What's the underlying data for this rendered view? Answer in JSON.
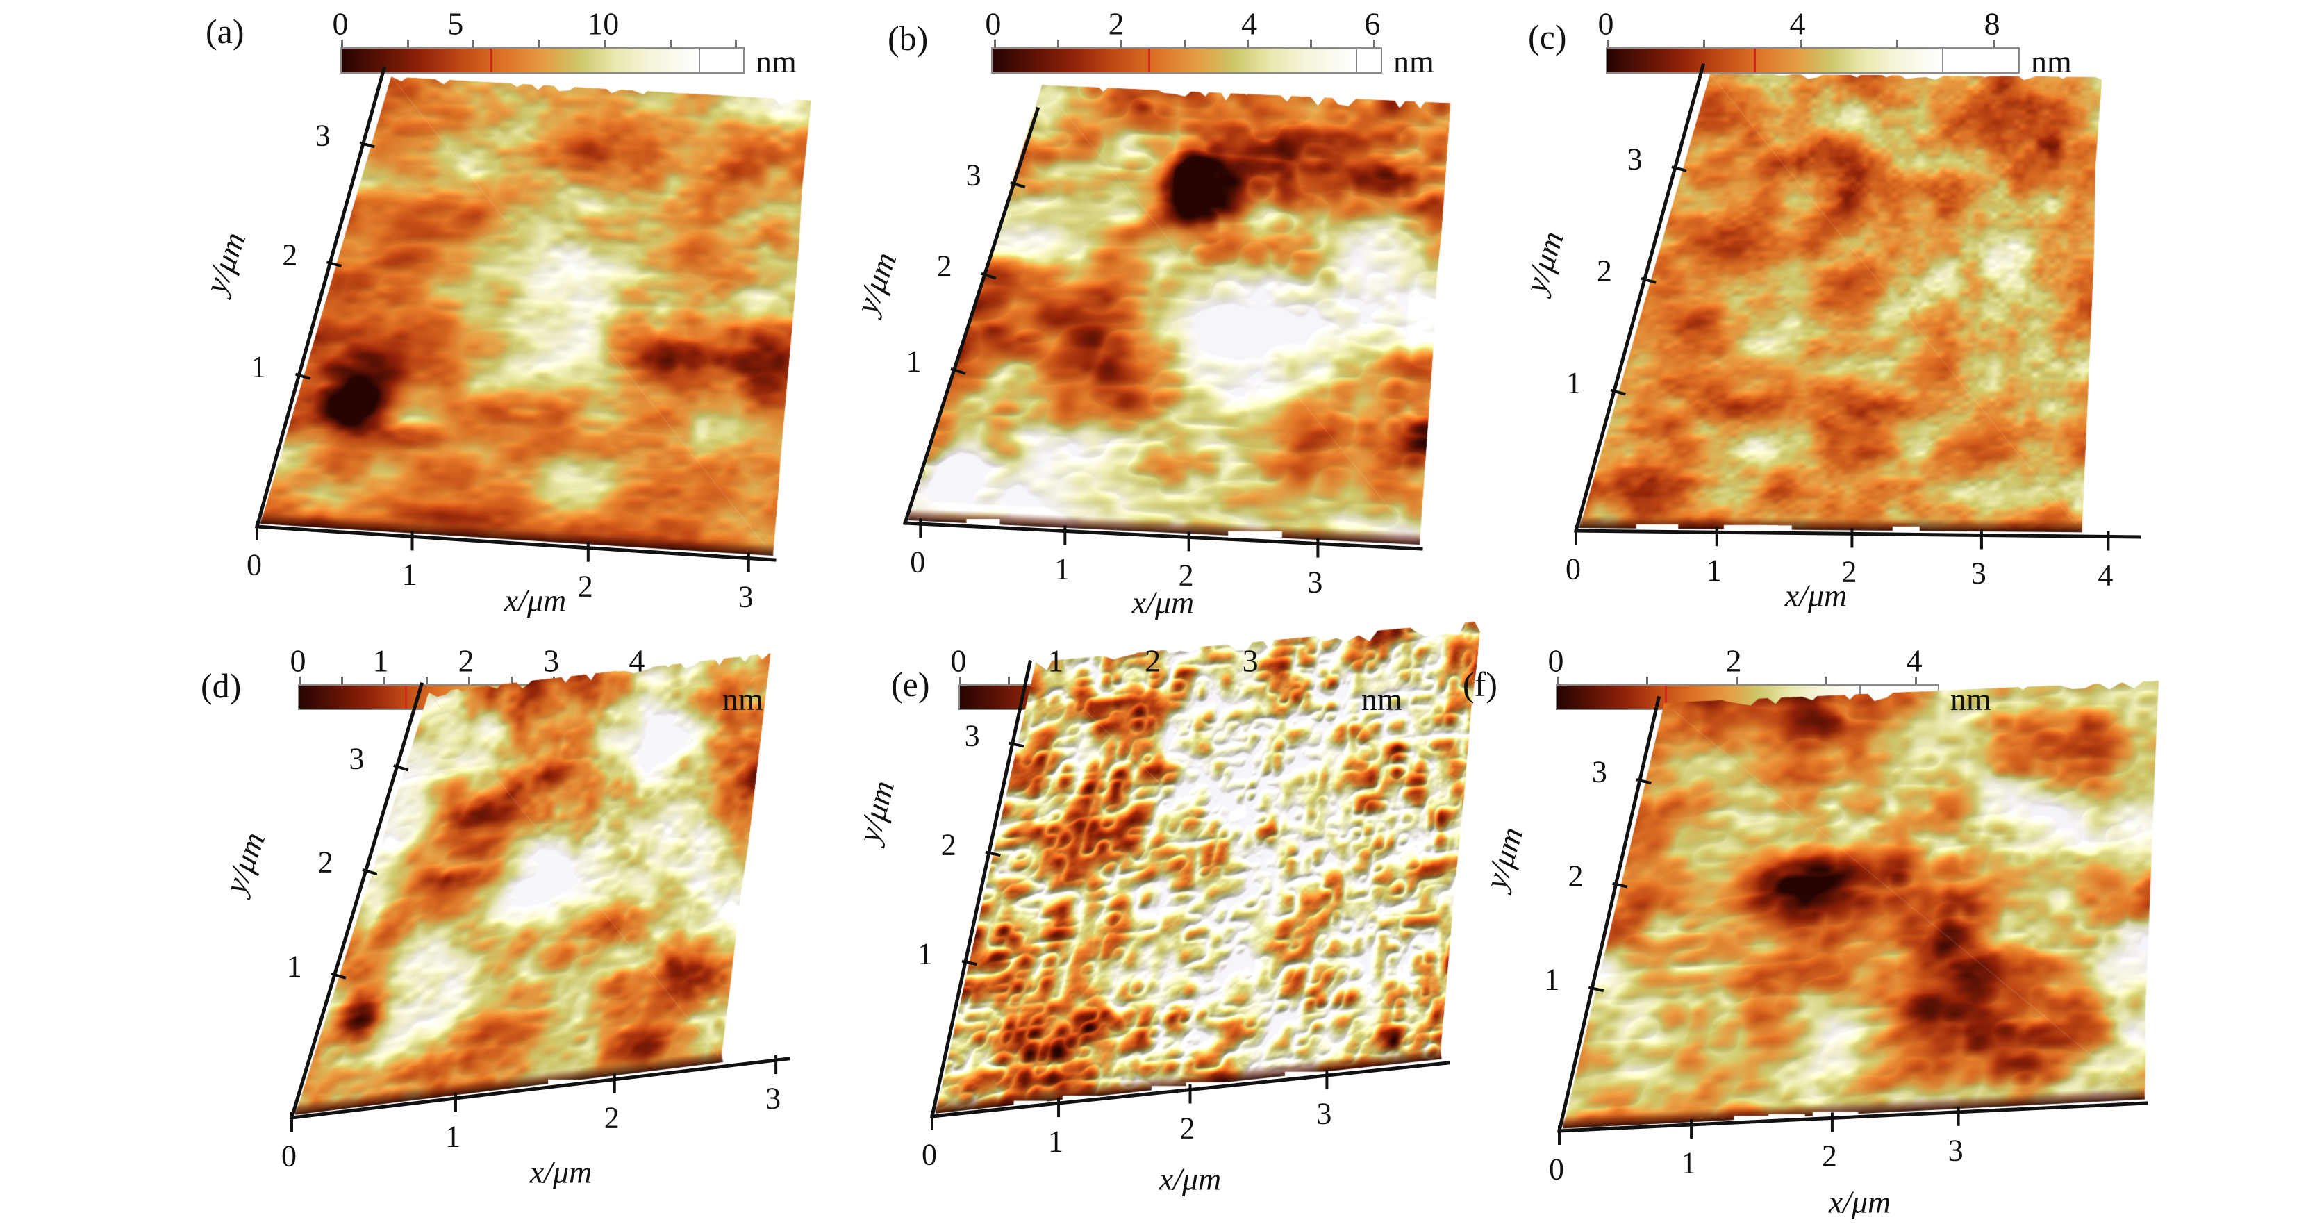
{
  "figure": {
    "background": "#ffffff",
    "rows": 2,
    "cols": 3,
    "description": "Six 3D AFM surface topography plots",
    "marker_color": "#ce2817",
    "colorbar_border": "#8a8a8a",
    "palette": [
      {
        "at": 0.0,
        "color": "#260402"
      },
      {
        "at": 0.1,
        "color": "#551004"
      },
      {
        "at": 0.22,
        "color": "#8e2108"
      },
      {
        "at": 0.34,
        "color": "#c14a15"
      },
      {
        "at": 0.46,
        "color": "#de7527"
      },
      {
        "at": 0.57,
        "color": "#e59d43"
      },
      {
        "at": 0.67,
        "color": "#cdc66a"
      },
      {
        "at": 0.77,
        "color": "#e9e9ae"
      },
      {
        "at": 0.86,
        "color": "#f5f3d7"
      },
      {
        "at": 1.0,
        "color": "#ffffff"
      }
    ]
  },
  "panels": [
    {
      "id": "a",
      "label": "(a)",
      "colorbar": {
        "unit": "nm",
        "labels": [
          {
            "text": "0",
            "f": 0.0
          },
          {
            "text": "5",
            "f": 0.285
          },
          {
            "text": "10",
            "f": 0.65
          }
        ],
        "marker_f": 0.368,
        "white_f": 0.885
      },
      "axes": {
        "x_label": "x/μm",
        "y_label": "y/μm",
        "x_ticks": [
          "0",
          "1",
          "2",
          "3"
        ],
        "y_ticks": [
          "1",
          "2",
          "3"
        ]
      }
    },
    {
      "id": "b",
      "label": "(b)",
      "colorbar": {
        "unit": "nm",
        "labels": [
          {
            "text": "0",
            "f": 0.005
          },
          {
            "text": "2",
            "f": 0.32
          },
          {
            "text": "4",
            "f": 0.66
          },
          {
            "text": "6",
            "f": 0.975
          }
        ],
        "marker_f": 0.4,
        "white_f": 0.93
      },
      "axes": {
        "x_label": "x/μm",
        "y_label": "y/μm",
        "x_ticks": [
          "0",
          "1",
          "2",
          "3"
        ],
        "y_ticks": [
          "1",
          "2",
          "3"
        ]
      }
    },
    {
      "id": "c",
      "label": "(c)",
      "colorbar": {
        "unit": "nm",
        "labels": [
          {
            "text": "0",
            "f": 0.0
          },
          {
            "text": "4",
            "f": 0.463
          },
          {
            "text": "8",
            "f": 0.933
          }
        ],
        "marker_f": 0.356,
        "white_f": 0.81
      },
      "axes": {
        "x_label": "x/μm",
        "y_label": "y/μm",
        "x_ticks": [
          "0",
          "1",
          "2",
          "3",
          "4"
        ],
        "y_ticks": [
          "1",
          "2",
          "3"
        ]
      }
    },
    {
      "id": "d",
      "label": "(d)",
      "colorbar": {
        "unit": "nm",
        "labels": [
          {
            "text": "0",
            "f": 0.0
          },
          {
            "text": "1",
            "f": 0.2
          },
          {
            "text": "2",
            "f": 0.407
          },
          {
            "text": "3",
            "f": 0.613
          },
          {
            "text": "4",
            "f": 0.82
          }
        ],
        "marker_f": 0.257,
        "white_f": 0.75
      },
      "axes": {
        "x_label": "x/μm",
        "y_label": "y/μm",
        "x_ticks": [
          "0",
          "1",
          "2",
          "3"
        ],
        "y_ticks": [
          "1",
          "2",
          "3"
        ]
      }
    },
    {
      "id": "e",
      "label": "(e)",
      "colorbar": {
        "unit": "nm",
        "labels": [
          {
            "text": "0",
            "f": 0.0
          },
          {
            "text": "1",
            "f": 0.248
          },
          {
            "text": "2",
            "f": 0.496
          },
          {
            "text": "3",
            "f": 0.745
          }
        ],
        "marker_f": 0.326,
        "white_f": 0.83
      },
      "axes": {
        "x_label": "x/μm",
        "y_label": "y/μm",
        "x_ticks": [
          "0",
          "1",
          "2",
          "3"
        ],
        "y_ticks": [
          "1",
          "2",
          "3"
        ]
      }
    },
    {
      "id": "f",
      "label": "(f)",
      "colorbar": {
        "unit": "nm",
        "labels": [
          {
            "text": "0",
            "f": 0.0
          },
          {
            "text": "2",
            "f": 0.464
          },
          {
            "text": "4",
            "f": 0.935
          }
        ],
        "marker_f": 0.283,
        "white_f": 0.79
      },
      "axes": {
        "x_label": "x/μm",
        "y_label": "y/μm",
        "x_ticks": [
          "0",
          "1",
          "2",
          "3"
        ],
        "y_ticks": [
          "1",
          "2",
          "3"
        ]
      }
    }
  ],
  "chart_data": [
    {
      "panel": "(a)",
      "type": "3d_surface_topography",
      "x_label": "x/μm",
      "y_label": "y/μm",
      "x_tick_values": [
        0,
        1,
        2,
        3
      ],
      "y_tick_values": [
        1,
        2,
        3
      ],
      "colorbar_unit": "nm",
      "colorbar_tick_values": [
        0,
        5,
        10
      ],
      "legend_position": "top",
      "grid": false
    },
    {
      "panel": "(b)",
      "type": "3d_surface_topography",
      "x_label": "x/μm",
      "y_label": "y/μm",
      "x_tick_values": [
        0,
        1,
        2,
        3
      ],
      "y_tick_values": [
        1,
        2,
        3
      ],
      "colorbar_unit": "nm",
      "colorbar_tick_values": [
        0,
        2,
        4,
        6
      ],
      "legend_position": "top",
      "grid": false
    },
    {
      "panel": "(c)",
      "type": "3d_surface_topography",
      "x_label": "x/μm",
      "y_label": "y/μm",
      "x_tick_values": [
        0,
        1,
        2,
        3,
        4
      ],
      "y_tick_values": [
        1,
        2,
        3
      ],
      "colorbar_unit": "nm",
      "colorbar_tick_values": [
        0,
        4,
        8
      ],
      "legend_position": "top",
      "grid": false
    },
    {
      "panel": "(d)",
      "type": "3d_surface_topography",
      "x_label": "x/μm",
      "y_label": "y/μm",
      "x_tick_values": [
        0,
        1,
        2,
        3
      ],
      "y_tick_values": [
        1,
        2,
        3
      ],
      "colorbar_unit": "nm",
      "colorbar_tick_values": [
        0,
        1,
        2,
        3,
        4
      ],
      "legend_position": "top",
      "grid": false
    },
    {
      "panel": "(e)",
      "type": "3d_surface_topography",
      "x_label": "x/μm",
      "y_label": "y/μm",
      "x_tick_values": [
        0,
        1,
        2,
        3
      ],
      "y_tick_values": [
        1,
        2,
        3
      ],
      "colorbar_unit": "nm",
      "colorbar_tick_values": [
        0,
        1,
        2,
        3
      ],
      "legend_position": "top",
      "grid": false
    },
    {
      "panel": "(f)",
      "type": "3d_surface_topography",
      "x_label": "x/μm",
      "y_label": "y/μm",
      "x_tick_values": [
        0,
        1,
        2,
        3
      ],
      "y_tick_values": [
        1,
        2,
        3
      ],
      "colorbar_unit": "nm",
      "colorbar_tick_values": [
        0,
        2,
        4
      ],
      "legend_position": "top",
      "grid": false
    }
  ]
}
